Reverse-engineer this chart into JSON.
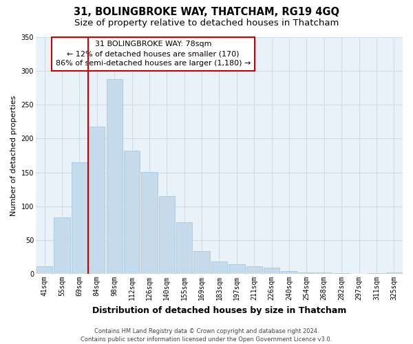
{
  "title": "31, BOLINGBROKE WAY, THATCHAM, RG19 4GQ",
  "subtitle": "Size of property relative to detached houses in Thatcham",
  "xlabel": "Distribution of detached houses by size in Thatcham",
  "ylabel": "Number of detached properties",
  "categories": [
    "41sqm",
    "55sqm",
    "69sqm",
    "84sqm",
    "98sqm",
    "112sqm",
    "126sqm",
    "140sqm",
    "155sqm",
    "169sqm",
    "183sqm",
    "197sqm",
    "211sqm",
    "226sqm",
    "240sqm",
    "254sqm",
    "268sqm",
    "282sqm",
    "297sqm",
    "311sqm",
    "325sqm"
  ],
  "values": [
    11,
    84,
    165,
    218,
    288,
    182,
    151,
    115,
    76,
    34,
    18,
    14,
    11,
    9,
    4,
    2,
    2,
    1,
    0,
    1,
    2
  ],
  "bar_color": "#c5daea",
  "bar_edge_color": "#a8c8e0",
  "vline_color": "#cc0000",
  "annotation_line1": "31 BOLINGBROKE WAY: 78sqm",
  "annotation_line2": "← 12% of detached houses are smaller (170)",
  "annotation_line3": "86% of semi-detached houses are larger (1,180) →",
  "ylim": [
    0,
    350
  ],
  "yticks": [
    0,
    50,
    100,
    150,
    200,
    250,
    300,
    350
  ],
  "grid_color": "#ccdde8",
  "bg_color": "#e8f2f8",
  "footer_text": "Contains HM Land Registry data © Crown copyright and database right 2024.\nContains public sector information licensed under the Open Government Licence v3.0.",
  "title_fontsize": 10.5,
  "subtitle_fontsize": 9.5,
  "xlabel_fontsize": 9,
  "ylabel_fontsize": 8,
  "tick_fontsize": 7,
  "annotation_fontsize": 8,
  "footer_fontsize": 6
}
